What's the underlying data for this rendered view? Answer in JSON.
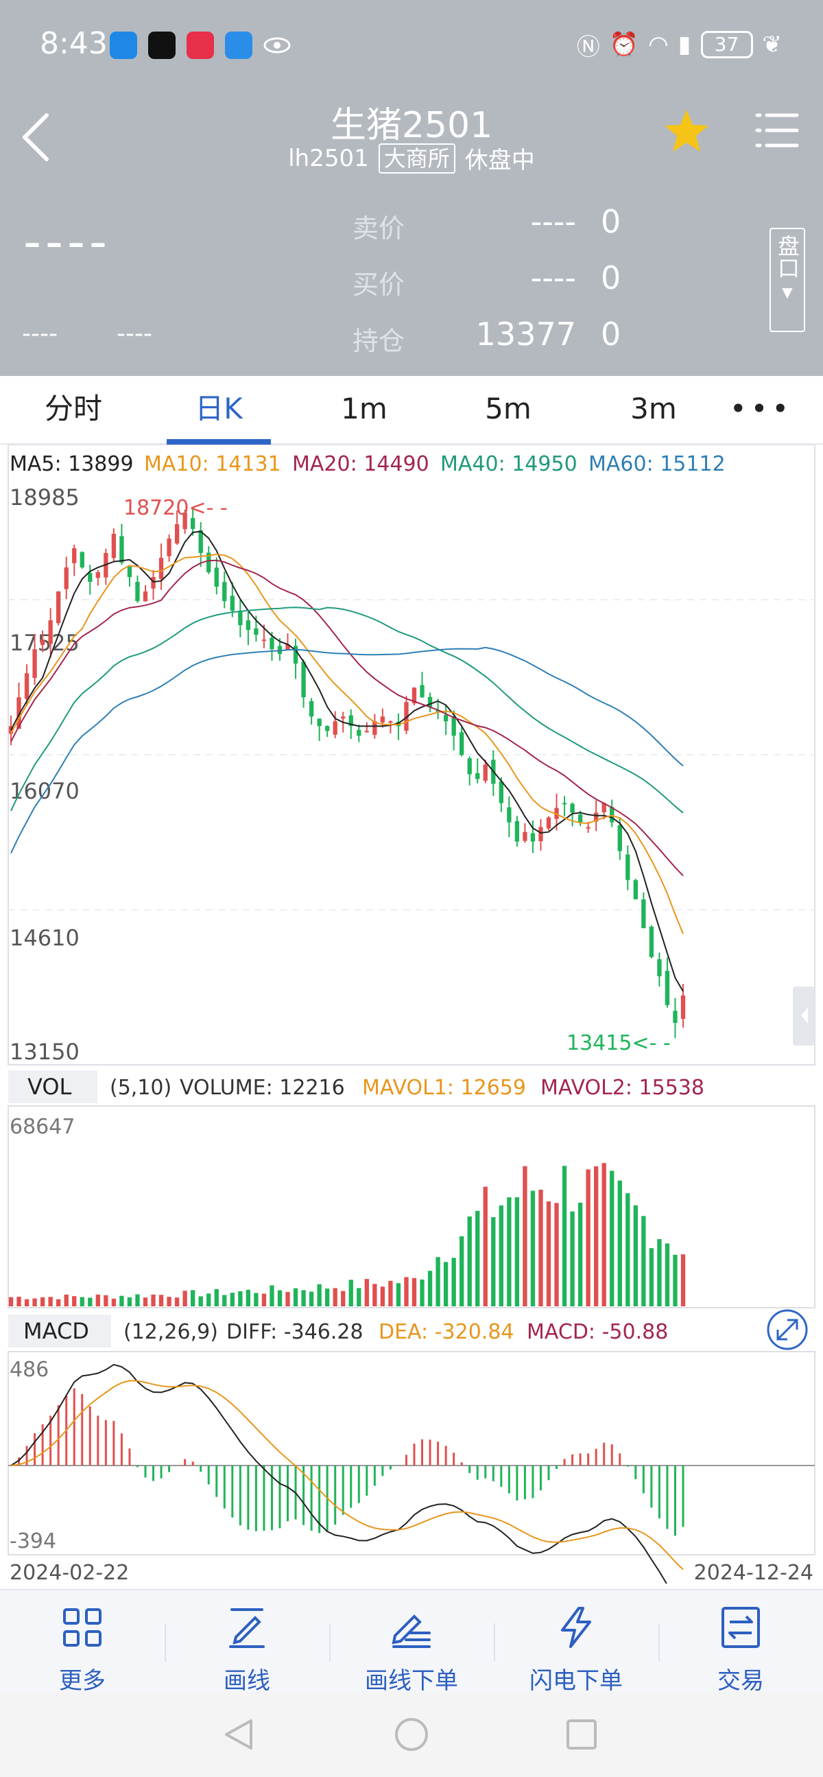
{
  "status_bar": {
    "time": "8:43",
    "battery": "37",
    "icons": [
      "bluetooth-icon",
      "tiktok-icon",
      "xiaohongshu-icon",
      "message-icon",
      "eye-icon",
      "nfc-icon",
      "alarm-icon",
      "wifi-icon",
      "signal-icon",
      "leaf-icon"
    ]
  },
  "header": {
    "title": "生猪2501",
    "code": "lh2501",
    "exchange": "大商所",
    "market_state": "休盘中"
  },
  "quote": {
    "last_price": "----",
    "change_abs": "----",
    "change_pct": "----",
    "ask_label": "卖价",
    "ask_price": "----",
    "ask_vol": "0",
    "bid_label": "买价",
    "bid_price": "----",
    "bid_vol": "0",
    "oi_label": "持仓",
    "oi_value": "13377",
    "oi_change": "0",
    "pankou_label": "盘口"
  },
  "tabs": [
    "分时",
    "日K",
    "1m",
    "5m",
    "3m"
  ],
  "tabs_active": 1,
  "legend": {
    "ma5": "MA5: 13899",
    "ma10": "MA10: 14131",
    "ma20": "MA20: 14490",
    "ma40": "MA40: 14950",
    "ma60": "MA60: 15112",
    "vol_tag": "VOL",
    "vol_param": "(5,10)",
    "volume": "VOLUME: 12216",
    "mavol1": "MAVOL1: 12659",
    "mavol2": "MAVOL2: 15538",
    "macd_tag": "MACD",
    "macd_param": "(12,26,9)",
    "diff": "DIFF: -346.28",
    "dea": "DEA: -320.84",
    "macd": "MACD: -50.88"
  },
  "colors": {
    "up": "#e0504f",
    "down": "#1fb45a",
    "ma5": "#222222",
    "ma10": "#e8961c",
    "ma20": "#a3254e",
    "ma40": "#1f9a7c",
    "ma60": "#2e7fb5",
    "accent": "#2e66c7"
  },
  "chart_data": {
    "type": "candlestick",
    "y_ticks": [
      "18985",
      "17525",
      "16070",
      "14610",
      "13150"
    ],
    "ylim": [
      13150,
      18985
    ],
    "high_mark": "18720<- -",
    "low_mark": "13415<- -",
    "x_start": "2024-02-22",
    "x_end": "2024-12-24",
    "vol_max_label": "68647",
    "macd_top_label": "486",
    "macd_bottom_label": "-394",
    "close_series": [
      16500,
      16800,
      17050,
      17300,
      17400,
      17600,
      17900,
      18150,
      18350,
      18150,
      18000,
      18100,
      18300,
      18500,
      18200,
      18050,
      17800,
      17900,
      18050,
      18250,
      18450,
      18600,
      18720,
      18550,
      18300,
      18100,
      17950,
      17800,
      17700,
      17550,
      17500,
      17450,
      17400,
      17300,
      17250,
      17350,
      17150,
      16800,
      16600,
      16500,
      16450,
      16550,
      16600,
      16500,
      16400,
      16450,
      16550,
      16600,
      16550,
      16500,
      16750,
      16900,
      16800,
      16700,
      16650,
      16550,
      16400,
      16200,
      16000,
      15950,
      16100,
      15900,
      15700,
      15500,
      15300,
      15400,
      15300,
      15450,
      15550,
      15650,
      15700,
      15600,
      15500,
      15450,
      15600,
      15700,
      15500,
      15200,
      14900,
      14700,
      14400,
      14100,
      13900,
      13600,
      13415,
      13700
    ]
  },
  "toolbar": [
    {
      "label": "更多",
      "icon": "grid-icon"
    },
    {
      "label": "画线",
      "icon": "pen-line-icon"
    },
    {
      "label": "画线下单",
      "icon": "pen-order-icon"
    },
    {
      "label": "闪电下单",
      "icon": "lightning-icon"
    },
    {
      "label": "交易",
      "icon": "trade-icon"
    }
  ]
}
